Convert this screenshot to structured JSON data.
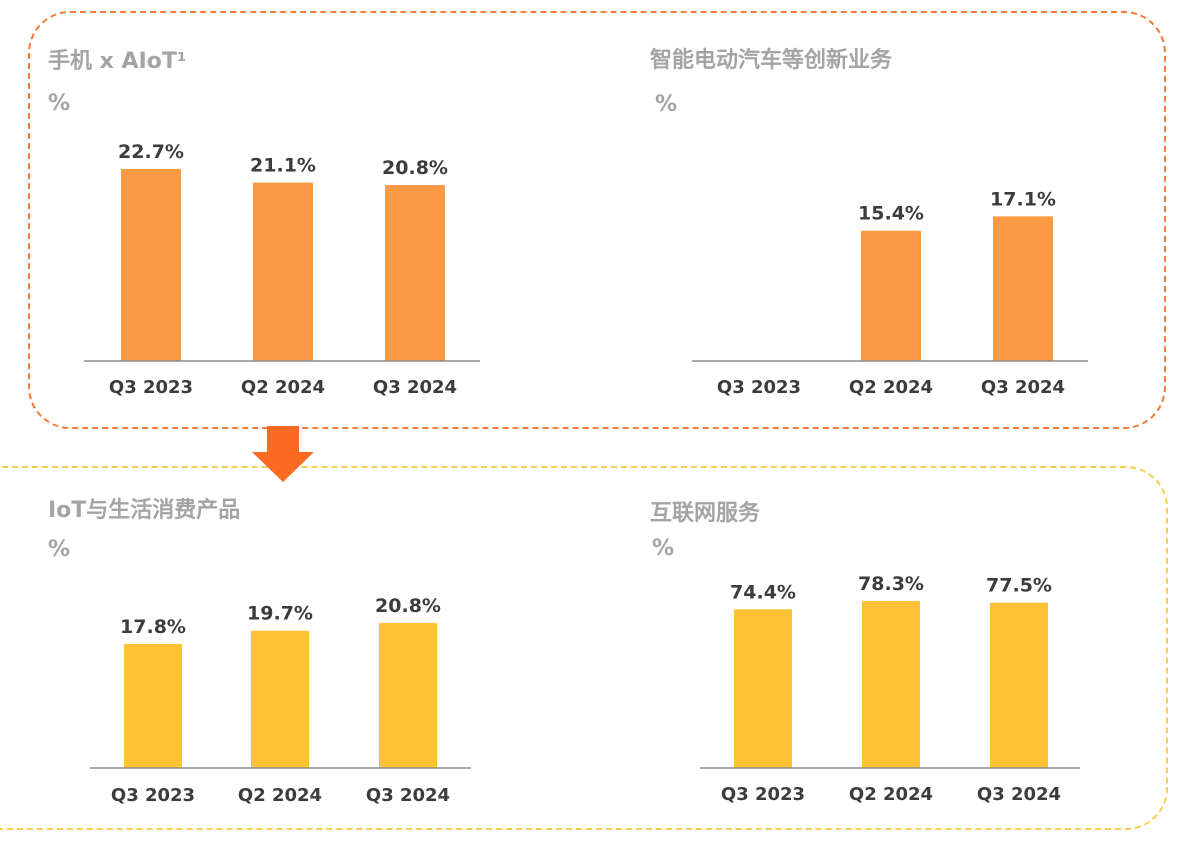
{
  "colors": {
    "orange_bar": "#fc9a45",
    "yellow_bar": "#fdc236",
    "top_border": "#f47a3c",
    "bottom_border": "#f7cf4c",
    "arrow": "#fa6a22"
  },
  "chart_data": [
    {
      "type": "bar",
      "title": "手机 x AIoT¹",
      "ylabel": "%",
      "categories": [
        "Q3 2023",
        "Q2 2024",
        "Q3 2024"
      ],
      "values": [
        22.7,
        21.1,
        20.8
      ],
      "value_labels": [
        "22.7%",
        "21.1%",
        "20.8%"
      ],
      "color": "#fc9a45"
    },
    {
      "type": "bar",
      "title": "智能电动汽车等创新业务",
      "ylabel": "%",
      "categories": [
        "Q3 2023",
        "Q2 2024",
        "Q3 2024"
      ],
      "values": [
        null,
        15.4,
        17.1
      ],
      "value_labels": [
        "",
        "15.4%",
        "17.1%"
      ],
      "color": "#fc9a45"
    },
    {
      "type": "bar",
      "title": "IoT与生活消费产品",
      "ylabel": "%",
      "categories": [
        "Q3 2023",
        "Q2 2024",
        "Q3 2024"
      ],
      "values": [
        17.8,
        19.7,
        20.8
      ],
      "value_labels": [
        "17.8%",
        "19.7%",
        "20.8%"
      ],
      "color": "#fdc236"
    },
    {
      "type": "bar",
      "title": "互联网服务",
      "ylabel": "%",
      "categories": [
        "Q3 2023",
        "Q2 2024",
        "Q3 2024"
      ],
      "values": [
        74.4,
        78.3,
        77.5
      ],
      "value_labels": [
        "74.4%",
        "78.3%",
        "77.5%"
      ],
      "color": "#fdc236"
    }
  ]
}
